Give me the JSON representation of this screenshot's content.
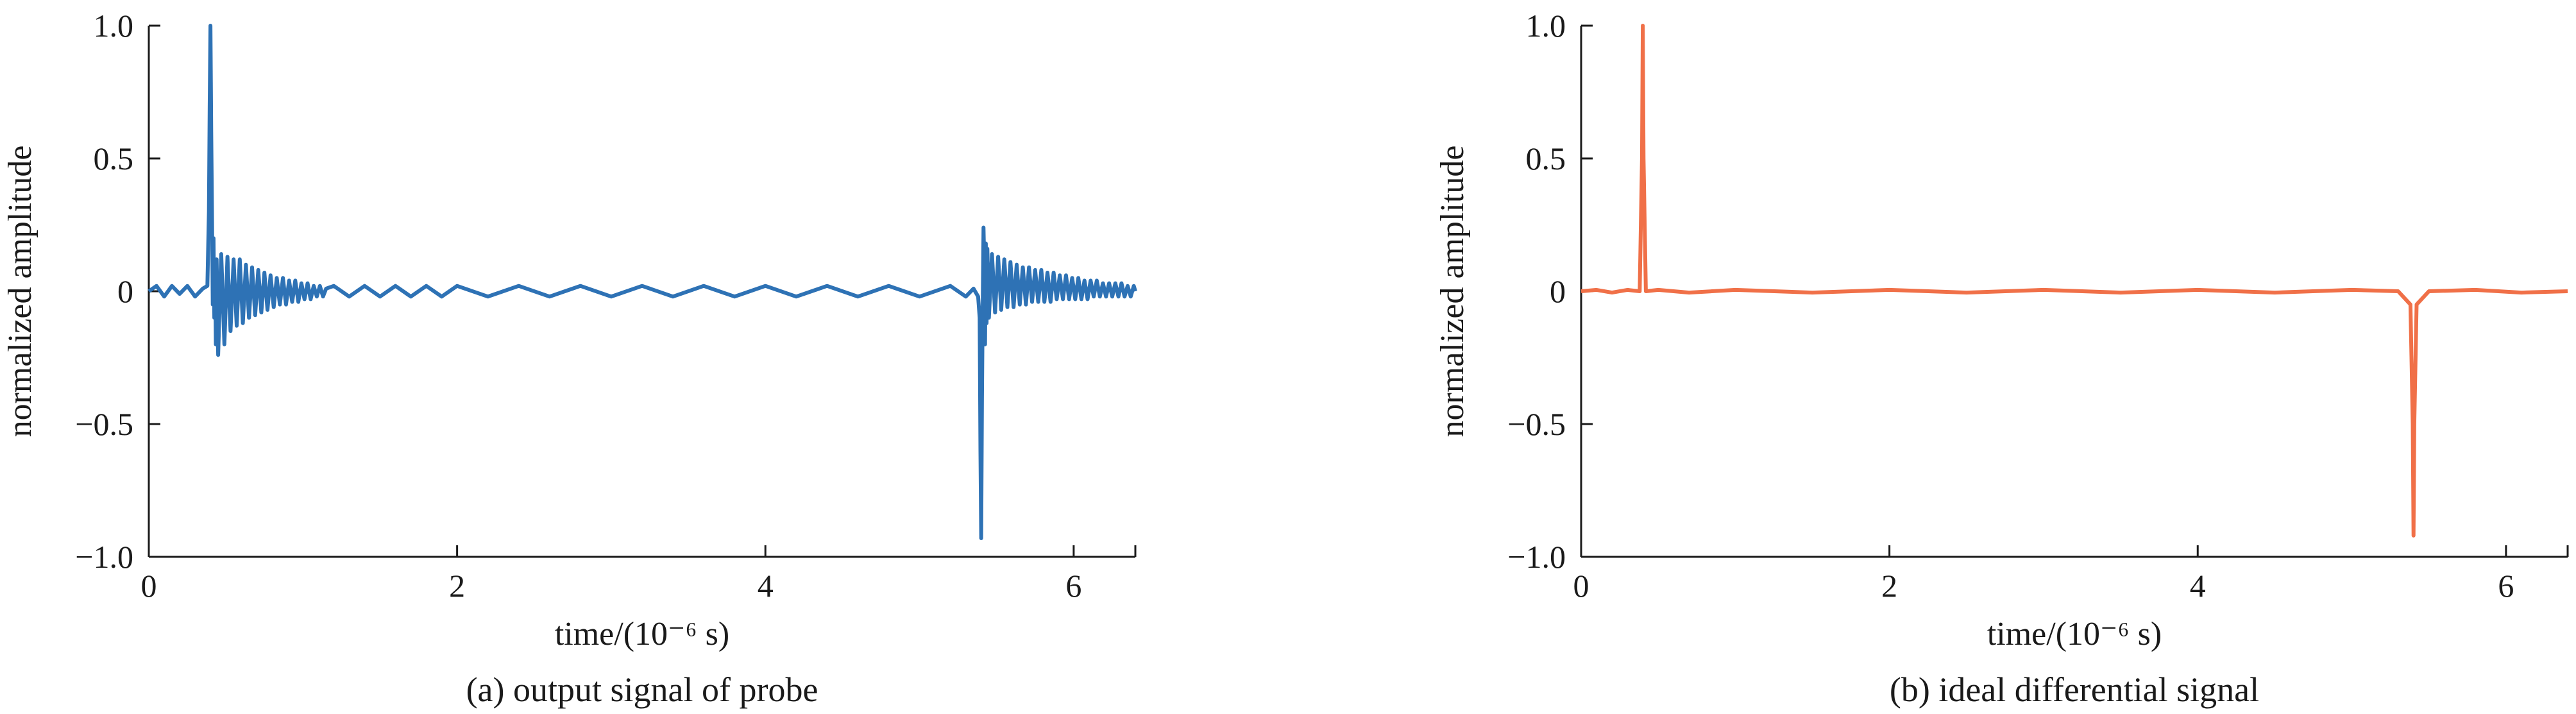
{
  "chart_data": [
    {
      "type": "line",
      "caption": "(a) output signal of probe",
      "xlabel": "time/(10⁻⁶ s)",
      "ylabel": "normalized amplitude",
      "xlim": [
        0,
        6.4
      ],
      "ylim": [
        -1.0,
        1.0
      ],
      "xticks": [
        0,
        2,
        4,
        6
      ],
      "xtick_labels": [
        "0",
        "2",
        "4",
        "6"
      ],
      "yticks": [
        -1.0,
        -0.5,
        0,
        0.5,
        1.0
      ],
      "ytick_labels": [
        "−1.0",
        "−0.5",
        "0",
        "0.5",
        "1.0"
      ],
      "grid": false,
      "color": "#2e72b5",
      "series": [
        {
          "x": [
            0,
            0.05,
            0.1,
            0.15,
            0.2,
            0.25,
            0.3,
            0.35,
            0.38,
            0.39,
            0.395,
            0.4,
            0.405,
            0.41,
            0.415,
            0.42,
            0.425,
            0.43,
            0.435,
            0.44,
            0.45,
            0.47,
            0.49,
            0.51,
            0.53,
            0.55,
            0.57,
            0.59,
            0.61,
            0.63,
            0.65,
            0.67,
            0.69,
            0.71,
            0.73,
            0.75,
            0.77,
            0.79,
            0.81,
            0.83,
            0.85,
            0.87,
            0.89,
            0.91,
            0.93,
            0.95,
            0.97,
            0.99,
            1.01,
            1.03,
            1.05,
            1.07,
            1.09,
            1.11,
            1.13,
            1.15,
            1.2,
            1.3,
            1.4,
            1.5,
            1.6,
            1.7,
            1.8,
            1.9,
            2.0,
            2.2,
            2.4,
            2.6,
            2.8,
            3.0,
            3.2,
            3.4,
            3.6,
            3.8,
            4.0,
            4.2,
            4.4,
            4.6,
            4.8,
            5.0,
            5.2,
            5.3,
            5.35,
            5.38,
            5.39,
            5.395,
            5.4,
            5.405,
            5.41,
            5.415,
            5.42,
            5.425,
            5.43,
            5.435,
            5.44,
            5.45,
            5.47,
            5.49,
            5.51,
            5.53,
            5.55,
            5.57,
            5.59,
            5.61,
            5.63,
            5.65,
            5.67,
            5.69,
            5.71,
            5.73,
            5.75,
            5.77,
            5.79,
            5.81,
            5.83,
            5.85,
            5.87,
            5.89,
            5.91,
            5.93,
            5.95,
            5.97,
            5.99,
            6.01,
            6.03,
            6.05,
            6.07,
            6.09,
            6.11,
            6.13,
            6.15,
            6.17,
            6.19,
            6.21,
            6.23,
            6.25,
            6.27,
            6.29,
            6.31,
            6.33,
            6.35,
            6.37,
            6.39,
            6.4
          ],
          "y": [
            0.0,
            0.02,
            -0.02,
            0.02,
            -0.01,
            0.02,
            -0.02,
            0.01,
            0.02,
            0.3,
            0.7,
            1.0,
            0.6,
            0.3,
            -0.05,
            0.2,
            -0.1,
            0.1,
            -0.2,
            0.12,
            -0.24,
            0.14,
            -0.2,
            0.13,
            -0.15,
            0.12,
            -0.13,
            0.12,
            -0.12,
            0.1,
            -0.1,
            0.09,
            -0.09,
            0.08,
            -0.08,
            0.07,
            -0.07,
            0.06,
            -0.06,
            0.05,
            -0.05,
            0.05,
            -0.05,
            0.04,
            -0.04,
            0.04,
            -0.04,
            0.03,
            -0.03,
            0.03,
            -0.03,
            0.02,
            -0.02,
            0.02,
            -0.02,
            0.01,
            0.02,
            -0.02,
            0.02,
            -0.02,
            0.02,
            -0.02,
            0.02,
            -0.02,
            0.02,
            -0.02,
            0.02,
            -0.02,
            0.02,
            -0.02,
            0.02,
            -0.02,
            0.02,
            -0.02,
            0.02,
            -0.02,
            0.02,
            -0.02,
            0.02,
            -0.02,
            0.02,
            -0.02,
            0.01,
            -0.02,
            -0.1,
            -0.6,
            -0.93,
            -0.4,
            -0.05,
            0.24,
            0.1,
            -0.2,
            0.18,
            -0.12,
            0.16,
            -0.1,
            0.14,
            -0.08,
            0.13,
            -0.07,
            0.12,
            -0.06,
            0.11,
            -0.06,
            0.1,
            -0.05,
            0.09,
            -0.05,
            0.09,
            -0.04,
            0.08,
            -0.04,
            0.08,
            -0.04,
            0.07,
            -0.04,
            0.07,
            -0.03,
            0.06,
            -0.03,
            0.06,
            -0.03,
            0.05,
            -0.03,
            0.05,
            -0.03,
            0.04,
            -0.03,
            0.04,
            -0.02,
            0.04,
            -0.02,
            0.03,
            -0.02,
            0.03,
            -0.02,
            0.03,
            -0.02,
            0.03,
            -0.02,
            0.02,
            -0.02,
            0.02,
            0.0
          ]
        }
      ]
    },
    {
      "type": "line",
      "caption": "(b) ideal differential signal",
      "xlabel": "time/(10⁻⁶ s)",
      "ylabel": "normalized amplitude",
      "xlim": [
        0,
        6.4
      ],
      "ylim": [
        -1.0,
        1.0
      ],
      "xticks": [
        0,
        2,
        4,
        6
      ],
      "xtick_labels": [
        "0",
        "2",
        "4",
        "6"
      ],
      "yticks": [
        -1.0,
        -0.5,
        0,
        0.5,
        1.0
      ],
      "ytick_labels": [
        "−1.0",
        "−0.5",
        "0",
        "0.5",
        "1.0"
      ],
      "grid": false,
      "color": "#f07048",
      "series": [
        {
          "x": [
            0,
            0.1,
            0.2,
            0.3,
            0.38,
            0.395,
            0.4,
            0.405,
            0.42,
            0.5,
            0.7,
            1.0,
            1.5,
            2.0,
            2.5,
            3.0,
            3.5,
            4.0,
            4.5,
            5.0,
            5.3,
            5.38,
            5.395,
            5.4,
            5.405,
            5.42,
            5.5,
            5.8,
            6.1,
            6.4
          ],
          "y": [
            0.0,
            0.005,
            -0.005,
            0.005,
            0.0,
            0.5,
            1.0,
            0.5,
            0.0,
            0.005,
            -0.005,
            0.005,
            -0.005,
            0.005,
            -0.005,
            0.005,
            -0.005,
            0.005,
            -0.005,
            0.005,
            0.0,
            -0.05,
            -0.5,
            -0.92,
            -0.5,
            -0.05,
            0.0,
            0.005,
            -0.005,
            0.0
          ]
        }
      ]
    }
  ]
}
